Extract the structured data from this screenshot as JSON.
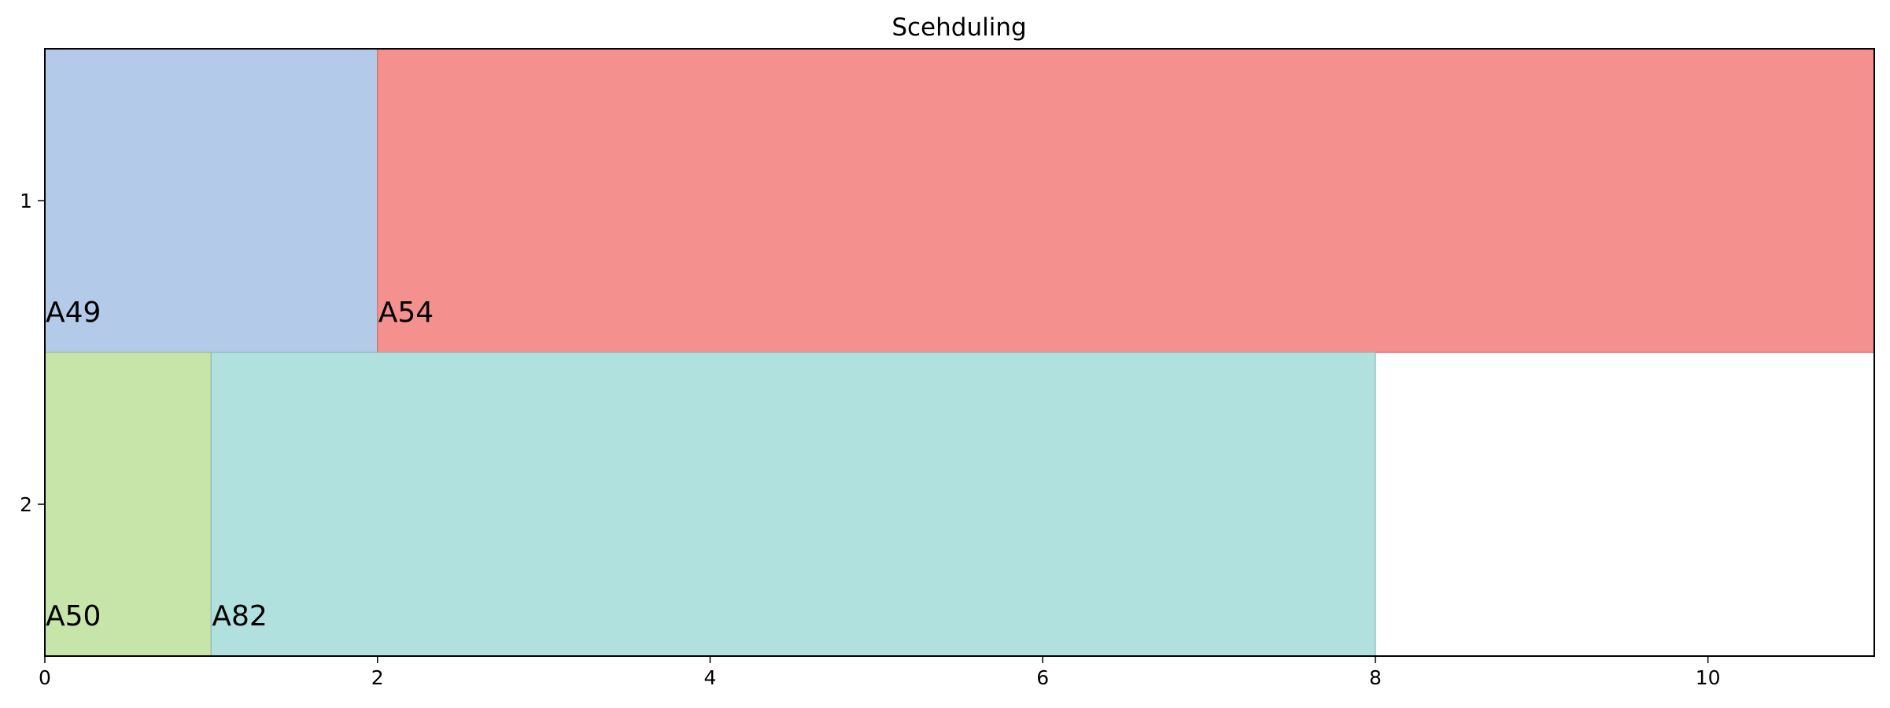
{
  "chart_data": {
    "type": "gantt",
    "title": "Scehduling",
    "xlabel": "",
    "ylabel": "",
    "xlim": [
      0,
      11
    ],
    "x_ticks": [
      0,
      2,
      4,
      6,
      8,
      10
    ],
    "rows": [
      "1",
      "2"
    ],
    "grid": false,
    "legend": "none",
    "tasks": [
      {
        "label": "A49",
        "row": "1",
        "start": 0,
        "end": 2,
        "color": "#b3cbe9"
      },
      {
        "label": "A54",
        "row": "1",
        "start": 2,
        "end": 11,
        "color": "#f4908d"
      },
      {
        "label": "A50",
        "row": "2",
        "start": 0,
        "end": 1,
        "color": "#c7e4a9"
      },
      {
        "label": "A82",
        "row": "2",
        "start": 1,
        "end": 8,
        "color": "#b1e1de"
      }
    ]
  }
}
